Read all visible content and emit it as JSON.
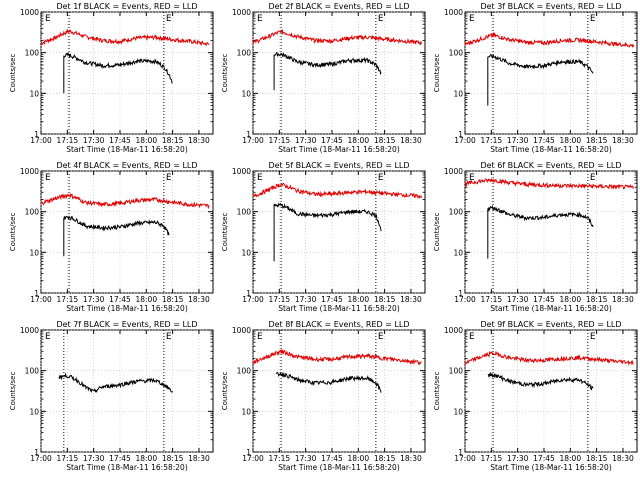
{
  "figure": {
    "xlabel": "Start Time (18-Mar-11 16:58:20)",
    "ylabel": "Counts/sec",
    "flag_marker": "E"
  },
  "chart_data": [
    {
      "type": "line",
      "title": "Det 1f BLACK = Events, RED = LLD",
      "x_range_minutes": [
        "17:00",
        "18:38"
      ],
      "x_ticks": [
        "17:00",
        "17:15",
        "17:30",
        "17:45",
        "18:00",
        "18:15",
        "18:30"
      ],
      "y_scale": "log",
      "ylim": [
        1,
        1000
      ],
      "y_ticks": [
        "1",
        "10",
        "100",
        "1000"
      ],
      "vlines": [
        "17:16",
        "18:10"
      ],
      "grid": "dotted",
      "series": [
        {
          "name": "RED = LLD",
          "color": "#e00000",
          "x": [
            "17:00",
            "17:08",
            "17:16",
            "17:25",
            "17:35",
            "17:45",
            "17:55",
            "18:05",
            "18:15",
            "18:25",
            "18:36"
          ],
          "y": [
            170,
            230,
            340,
            250,
            200,
            190,
            230,
            240,
            210,
            190,
            160
          ]
        },
        {
          "name": "BLACK = Events",
          "color": "#000000",
          "x": [
            "17:13",
            "17:13",
            "17:16",
            "17:25",
            "17:35",
            "17:45",
            "17:55",
            "18:05",
            "18:10",
            "18:15"
          ],
          "y": [
            10,
            85,
            88,
            58,
            48,
            50,
            62,
            62,
            45,
            18
          ]
        }
      ]
    },
    {
      "type": "line",
      "title": "Det 2f BLACK = Events, RED = LLD",
      "x_range_minutes": [
        "17:00",
        "18:38"
      ],
      "x_ticks": [
        "17:00",
        "17:15",
        "17:30",
        "17:45",
        "18:00",
        "18:15",
        "18:30"
      ],
      "y_scale": "log",
      "ylim": [
        1,
        1000
      ],
      "y_ticks": [
        "1",
        "10",
        "100",
        "1000"
      ],
      "vlines": [
        "17:16",
        "18:10"
      ],
      "grid": "dotted",
      "series": [
        {
          "name": "RED = LLD",
          "color": "#e00000",
          "x": [
            "17:00",
            "17:08",
            "17:16",
            "17:25",
            "17:35",
            "17:45",
            "17:55",
            "18:05",
            "18:15",
            "18:25",
            "18:36"
          ],
          "y": [
            175,
            240,
            330,
            250,
            200,
            195,
            230,
            240,
            215,
            195,
            175
          ]
        },
        {
          "name": "BLACK = Events",
          "color": "#000000",
          "x": [
            "17:12",
            "17:12",
            "17:16",
            "17:25",
            "17:35",
            "17:45",
            "17:55",
            "18:05",
            "18:10",
            "18:13"
          ],
          "y": [
            12,
            90,
            92,
            60,
            50,
            52,
            65,
            65,
            50,
            30
          ]
        }
      ]
    },
    {
      "type": "line",
      "title": "Det 3f BLACK = Events, RED = LLD",
      "x_range_minutes": [
        "17:00",
        "18:38"
      ],
      "x_ticks": [
        "17:00",
        "17:15",
        "17:30",
        "17:45",
        "18:00",
        "18:15",
        "18:30"
      ],
      "y_scale": "log",
      "ylim": [
        1,
        1000
      ],
      "y_ticks": [
        "1",
        "10",
        "100",
        "1000"
      ],
      "vlines": [
        "17:16",
        "18:10"
      ],
      "grid": "dotted",
      "series": [
        {
          "name": "RED = LLD",
          "color": "#e00000",
          "x": [
            "17:00",
            "17:08",
            "17:16",
            "17:25",
            "17:35",
            "17:45",
            "17:55",
            "18:05",
            "18:15",
            "18:25",
            "18:36"
          ],
          "y": [
            160,
            210,
            270,
            210,
            180,
            175,
            200,
            205,
            185,
            165,
            150
          ]
        },
        {
          "name": "BLACK = Events",
          "color": "#000000",
          "x": [
            "17:13",
            "17:13",
            "17:16",
            "17:25",
            "17:35",
            "17:45",
            "17:55",
            "18:05",
            "18:10",
            "18:13"
          ],
          "y": [
            5,
            80,
            82,
            55,
            45,
            48,
            60,
            60,
            45,
            30
          ]
        }
      ]
    },
    {
      "type": "line",
      "title": "Det 4f BLACK = Events, RED = LLD",
      "x_range_minutes": [
        "17:00",
        "18:38"
      ],
      "x_ticks": [
        "17:00",
        "17:15",
        "17:30",
        "17:45",
        "18:00",
        "18:15",
        "18:30"
      ],
      "y_scale": "log",
      "ylim": [
        1,
        1000
      ],
      "y_ticks": [
        "1",
        "10",
        "100",
        "1000"
      ],
      "vlines": [
        "17:16",
        "18:10"
      ],
      "grid": "dotted",
      "series": [
        {
          "name": "RED = LLD",
          "color": "#e00000",
          "x": [
            "17:00",
            "17:08",
            "17:16",
            "17:25",
            "17:35",
            "17:45",
            "17:55",
            "18:05",
            "18:15",
            "18:25",
            "18:36"
          ],
          "y": [
            160,
            210,
            260,
            170,
            150,
            160,
            190,
            200,
            170,
            150,
            140
          ]
        },
        {
          "name": "BLACK = Events",
          "color": "#000000",
          "x": [
            "17:13",
            "17:13",
            "17:16",
            "17:25",
            "17:35",
            "17:45",
            "17:55",
            "18:05",
            "18:10",
            "18:13"
          ],
          "y": [
            8,
            70,
            75,
            45,
            40,
            42,
            52,
            55,
            45,
            25
          ]
        }
      ]
    },
    {
      "type": "line",
      "title": "Det 5f BLACK = Events, RED = LLD",
      "x_range_minutes": [
        "17:00",
        "18:38"
      ],
      "x_ticks": [
        "17:00",
        "17:15",
        "17:30",
        "17:45",
        "18:00",
        "18:15",
        "18:30"
      ],
      "y_scale": "log",
      "ylim": [
        1,
        1000
      ],
      "y_ticks": [
        "1",
        "10",
        "100",
        "1000"
      ],
      "vlines": [
        "17:16",
        "18:10"
      ],
      "grid": "dotted",
      "series": [
        {
          "name": "RED = LLD",
          "color": "#e00000",
          "x": [
            "17:00",
            "17:08",
            "17:16",
            "17:25",
            "17:35",
            "17:45",
            "17:55",
            "18:05",
            "18:15",
            "18:25",
            "18:36"
          ],
          "y": [
            230,
            330,
            470,
            330,
            270,
            270,
            300,
            310,
            280,
            260,
            240
          ]
        },
        {
          "name": "BLACK = Events",
          "color": "#000000",
          "x": [
            "17:12",
            "17:12",
            "17:16",
            "17:25",
            "17:35",
            "17:45",
            "17:55",
            "18:05",
            "18:10",
            "18:13"
          ],
          "y": [
            6,
            140,
            145,
            90,
            80,
            85,
            100,
            100,
            80,
            35
          ]
        }
      ]
    },
    {
      "type": "line",
      "title": "Det 6f BLACK = Events, RED = LLD",
      "x_range_minutes": [
        "17:00",
        "18:38"
      ],
      "x_ticks": [
        "17:00",
        "17:15",
        "17:30",
        "17:45",
        "18:00",
        "18:15",
        "18:30"
      ],
      "y_scale": "log",
      "ylim": [
        1,
        1000
      ],
      "y_ticks": [
        "1",
        "10",
        "100",
        "1000"
      ],
      "vlines": [
        "17:16",
        "18:10"
      ],
      "grid": "dotted",
      "series": [
        {
          "name": "RED = LLD",
          "color": "#e00000",
          "x": [
            "17:00",
            "17:08",
            "17:16",
            "17:25",
            "17:35",
            "17:45",
            "17:55",
            "18:05",
            "18:15",
            "18:25",
            "18:36"
          ],
          "y": [
            480,
            560,
            600,
            520,
            470,
            450,
            440,
            430,
            420,
            410,
            400
          ]
        },
        {
          "name": "BLACK = Events",
          "color": "#000000",
          "x": [
            "17:13",
            "17:13",
            "17:16",
            "17:25",
            "17:35",
            "17:45",
            "17:55",
            "18:05",
            "18:10",
            "18:13"
          ],
          "y": [
            7,
            120,
            125,
            85,
            70,
            72,
            85,
            85,
            70,
            40
          ]
        }
      ]
    },
    {
      "type": "line",
      "title": "Det 7f BLACK = Events, RED = LLD",
      "x_range_minutes": [
        "17:00",
        "18:38"
      ],
      "x_ticks": [
        "17:00",
        "17:15",
        "17:30",
        "17:45",
        "18:00",
        "18:15",
        "18:30"
      ],
      "y_scale": "log",
      "ylim": [
        1,
        1000
      ],
      "y_ticks": [
        "1",
        "10",
        "100",
        "1000"
      ],
      "vlines": [
        "17:13",
        "18:10"
      ],
      "grid": "dotted",
      "series": [
        {
          "name": "BLACK = Events",
          "color": "#000000",
          "x": [
            "17:10",
            "17:15",
            "17:20",
            "17:25",
            "17:30",
            "17:35",
            "17:45",
            "17:55",
            "18:05",
            "18:10",
            "18:15"
          ],
          "y": [
            70,
            75,
            60,
            40,
            30,
            40,
            45,
            55,
            58,
            45,
            30
          ]
        }
      ]
    },
    {
      "type": "line",
      "title": "Det 8f BLACK = Events, RED = LLD",
      "x_range_minutes": [
        "17:00",
        "18:38"
      ],
      "x_ticks": [
        "17:00",
        "17:15",
        "17:30",
        "17:45",
        "18:00",
        "18:15",
        "18:30"
      ],
      "y_scale": "log",
      "ylim": [
        1,
        1000
      ],
      "y_ticks": [
        "1",
        "10",
        "100",
        "1000"
      ],
      "vlines": [
        "17:16",
        "18:10"
      ],
      "grid": "dotted",
      "series": [
        {
          "name": "RED = LLD",
          "color": "#e00000",
          "x": [
            "17:00",
            "17:08",
            "17:16",
            "17:25",
            "17:35",
            "17:45",
            "17:55",
            "18:05",
            "18:15",
            "18:25",
            "18:36"
          ],
          "y": [
            160,
            220,
            300,
            220,
            190,
            190,
            220,
            230,
            200,
            180,
            160
          ]
        },
        {
          "name": "BLACK = Events",
          "color": "#000000",
          "x": [
            "17:13",
            "17:16",
            "17:25",
            "17:35",
            "17:45",
            "17:55",
            "18:05",
            "18:10",
            "18:13"
          ],
          "y": [
            80,
            85,
            60,
            50,
            52,
            65,
            65,
            50,
            30
          ]
        }
      ]
    },
    {
      "type": "line",
      "title": "Det 9f BLACK = Events, RED = LLD",
      "x_range_minutes": [
        "17:00",
        "18:38"
      ],
      "x_ticks": [
        "17:00",
        "17:15",
        "17:30",
        "17:45",
        "18:00",
        "18:15",
        "18:30"
      ],
      "y_scale": "log",
      "ylim": [
        1,
        1000
      ],
      "y_ticks": [
        "1",
        "10",
        "100",
        "1000"
      ],
      "vlines": [
        "17:16",
        "18:10"
      ],
      "grid": "dotted",
      "series": [
        {
          "name": "RED = LLD",
          "color": "#e00000",
          "x": [
            "17:00",
            "17:08",
            "17:16",
            "17:25",
            "17:35",
            "17:45",
            "17:55",
            "18:05",
            "18:15",
            "18:25",
            "18:36"
          ],
          "y": [
            150,
            210,
            270,
            210,
            180,
            180,
            200,
            210,
            190,
            170,
            160
          ]
        },
        {
          "name": "BLACK = Events",
          "color": "#000000",
          "x": [
            "17:13",
            "17:16",
            "17:25",
            "17:35",
            "17:45",
            "17:55",
            "18:05",
            "18:10",
            "18:13"
          ],
          "y": [
            75,
            80,
            55,
            45,
            48,
            60,
            60,
            45,
            35
          ]
        }
      ]
    }
  ]
}
